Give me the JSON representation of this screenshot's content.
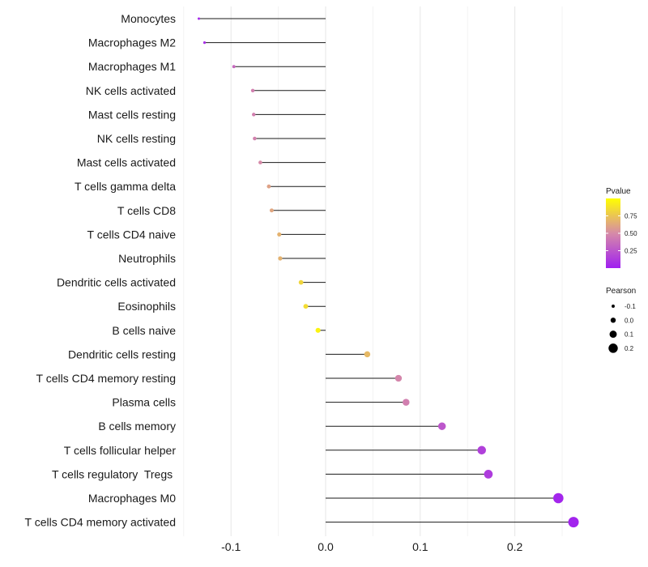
{
  "chart_data": {
    "type": "lollipop",
    "title": "",
    "xlabel": "",
    "ylabel": "",
    "xlim": [
      -0.15,
      0.27
    ],
    "x_ticks": [
      -0.1,
      0.0,
      0.1,
      0.2
    ],
    "x_tick_labels": [
      "-0.1",
      "0.0",
      "0.1",
      "0.2"
    ],
    "grid": true,
    "color_scale": {
      "name": "Pvalue",
      "low_color": "#a020f0",
      "mid_color": "#d68aa8",
      "high_color": "#ffff00",
      "range": [
        0.0,
        1.0
      ],
      "ticks": [
        0.25,
        0.5,
        0.75
      ],
      "tick_labels": [
        "0.25",
        "0.50",
        "0.75"
      ]
    },
    "size_scale": {
      "name": "Pearson",
      "range": [
        -0.135,
        0.262
      ],
      "ticks": [
        -0.1,
        0.0,
        0.1,
        0.2
      ],
      "tick_labels": [
        "-0.1",
        "0.0",
        "0.1",
        "0.2"
      ]
    },
    "series": [
      {
        "name": "Monocytes",
        "pearson": -0.134,
        "pvalue": 0.05
      },
      {
        "name": "Macrophages M2",
        "pearson": -0.128,
        "pvalue": 0.07
      },
      {
        "name": "Macrophages M1",
        "pearson": -0.097,
        "pvalue": 0.35
      },
      {
        "name": "NK cells activated",
        "pearson": -0.077,
        "pvalue": 0.45
      },
      {
        "name": "Mast cells resting",
        "pearson": -0.076,
        "pvalue": 0.45
      },
      {
        "name": "NK cells resting",
        "pearson": -0.075,
        "pvalue": 0.46
      },
      {
        "name": "Mast cells activated",
        "pearson": -0.069,
        "pvalue": 0.5
      },
      {
        "name": "T cells gamma delta",
        "pearson": -0.06,
        "pvalue": 0.6
      },
      {
        "name": "T cells CD8",
        "pearson": -0.057,
        "pvalue": 0.62
      },
      {
        "name": "T cells CD4 naive",
        "pearson": -0.049,
        "pvalue": 0.67
      },
      {
        "name": "Neutrophils",
        "pearson": -0.048,
        "pvalue": 0.67
      },
      {
        "name": "Dendritic cells activated",
        "pearson": -0.026,
        "pvalue": 0.82
      },
      {
        "name": "Eosinophils",
        "pearson": -0.021,
        "pvalue": 0.85
      },
      {
        "name": "B cells naive",
        "pearson": -0.008,
        "pvalue": 0.95
      },
      {
        "name": "Dendritic cells resting",
        "pearson": 0.044,
        "pvalue": 0.7
      },
      {
        "name": "T cells CD4 memory resting",
        "pearson": 0.077,
        "pvalue": 0.48
      },
      {
        "name": "Plasma cells",
        "pearson": 0.085,
        "pvalue": 0.45
      },
      {
        "name": "B cells memory",
        "pearson": 0.123,
        "pvalue": 0.26
      },
      {
        "name": "T cells follicular helper",
        "pearson": 0.165,
        "pvalue": 0.15
      },
      {
        "name": "T cells regulatory  Tregs ",
        "pearson": 0.172,
        "pvalue": 0.13
      },
      {
        "name": "Macrophages M0",
        "pearson": 0.246,
        "pvalue": 0.03
      },
      {
        "name": "T cells CD4 memory activated",
        "pearson": 0.262,
        "pvalue": 0.02
      }
    ]
  }
}
